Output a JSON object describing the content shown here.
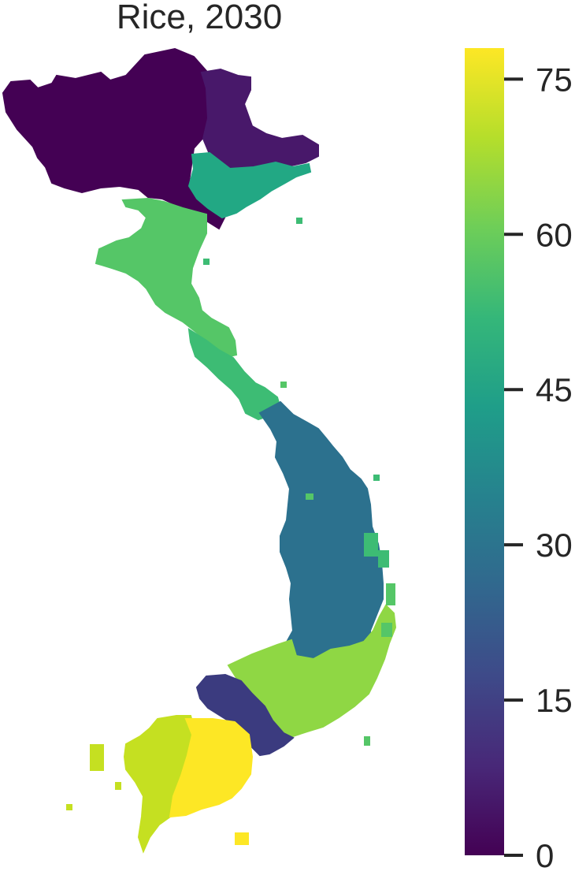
{
  "chart_data": {
    "type": "heatmap",
    "title": "Rice, 2030",
    "colormap": "viridis",
    "colorbar": {
      "min": 0,
      "max": 78,
      "ticks": [
        0,
        15,
        30,
        45,
        60,
        75
      ],
      "tick_labels": [
        "0",
        "15",
        "30",
        "45",
        "60",
        "75"
      ],
      "stops": [
        "#440154",
        "#482878",
        "#3e4a89",
        "#31688e",
        "#26828e",
        "#1f9e89",
        "#35b779",
        "#6ece58",
        "#b5de2b",
        "#fde725"
      ]
    },
    "regions": [
      {
        "value": 2,
        "color": "#440154"
      },
      {
        "value": 8,
        "color": "#48186a"
      },
      {
        "value": 18,
        "color": "#3b3b7f"
      },
      {
        "value": 33,
        "color": "#2c718e"
      },
      {
        "value": 47,
        "color": "#22a884"
      },
      {
        "value": 55,
        "color": "#3dbc74"
      },
      {
        "value": 60,
        "color": "#55c667"
      },
      {
        "value": 66,
        "color": "#8fd744"
      },
      {
        "value": 72,
        "color": "#c5e021"
      },
      {
        "value": 78,
        "color": "#fde725"
      }
    ],
    "axes": "off",
    "grid": false
  }
}
